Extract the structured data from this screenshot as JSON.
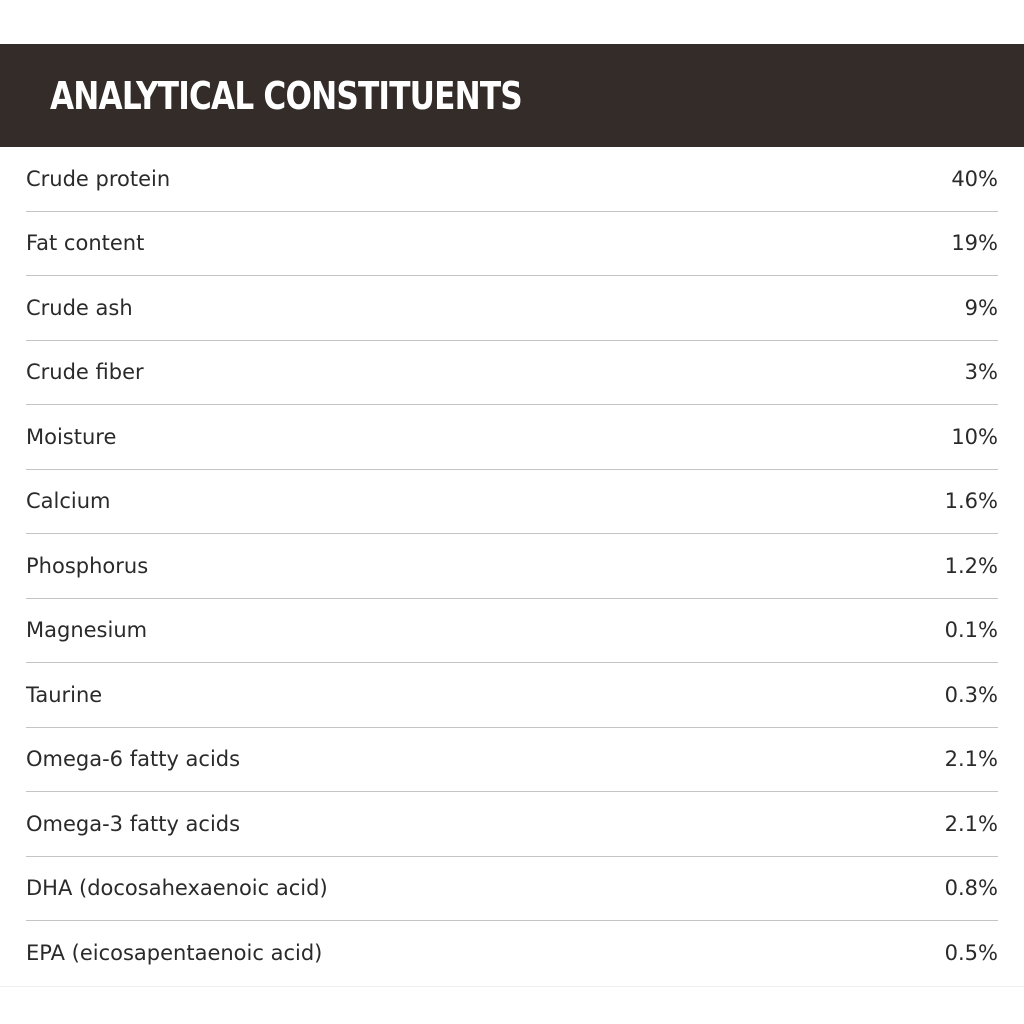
{
  "header": {
    "title": "ANALYTICAL CONSTITUENTS"
  },
  "rows": [
    {
      "label": "Crude protein",
      "value": "40%"
    },
    {
      "label": "Fat content",
      "value": "19%"
    },
    {
      "label": "Crude ash",
      "value": "9%"
    },
    {
      "label": "Crude fiber",
      "value": "3%"
    },
    {
      "label": "Moisture",
      "value": "10%"
    },
    {
      "label": "Calcium",
      "value": "1.6%"
    },
    {
      "label": "Phosphorus",
      "value": "1.2%"
    },
    {
      "label": "Magnesium",
      "value": "0.1%"
    },
    {
      "label": "Taurine",
      "value": "0.3%"
    },
    {
      "label": "Omega-6 fatty acids",
      "value": "2.1%"
    },
    {
      "label": "Omega-3 fatty acids",
      "value": "2.1%"
    },
    {
      "label": "DHA (docosahexaenoic acid)",
      "value": "0.8%"
    },
    {
      "label": "EPA (eicosapentaenoic acid)",
      "value": "0.5%"
    }
  ],
  "colors": {
    "header_background": "#332c29",
    "header_text": "#ffffff",
    "row_text": "#2a2a2a",
    "divider": "#c4c4c4"
  }
}
